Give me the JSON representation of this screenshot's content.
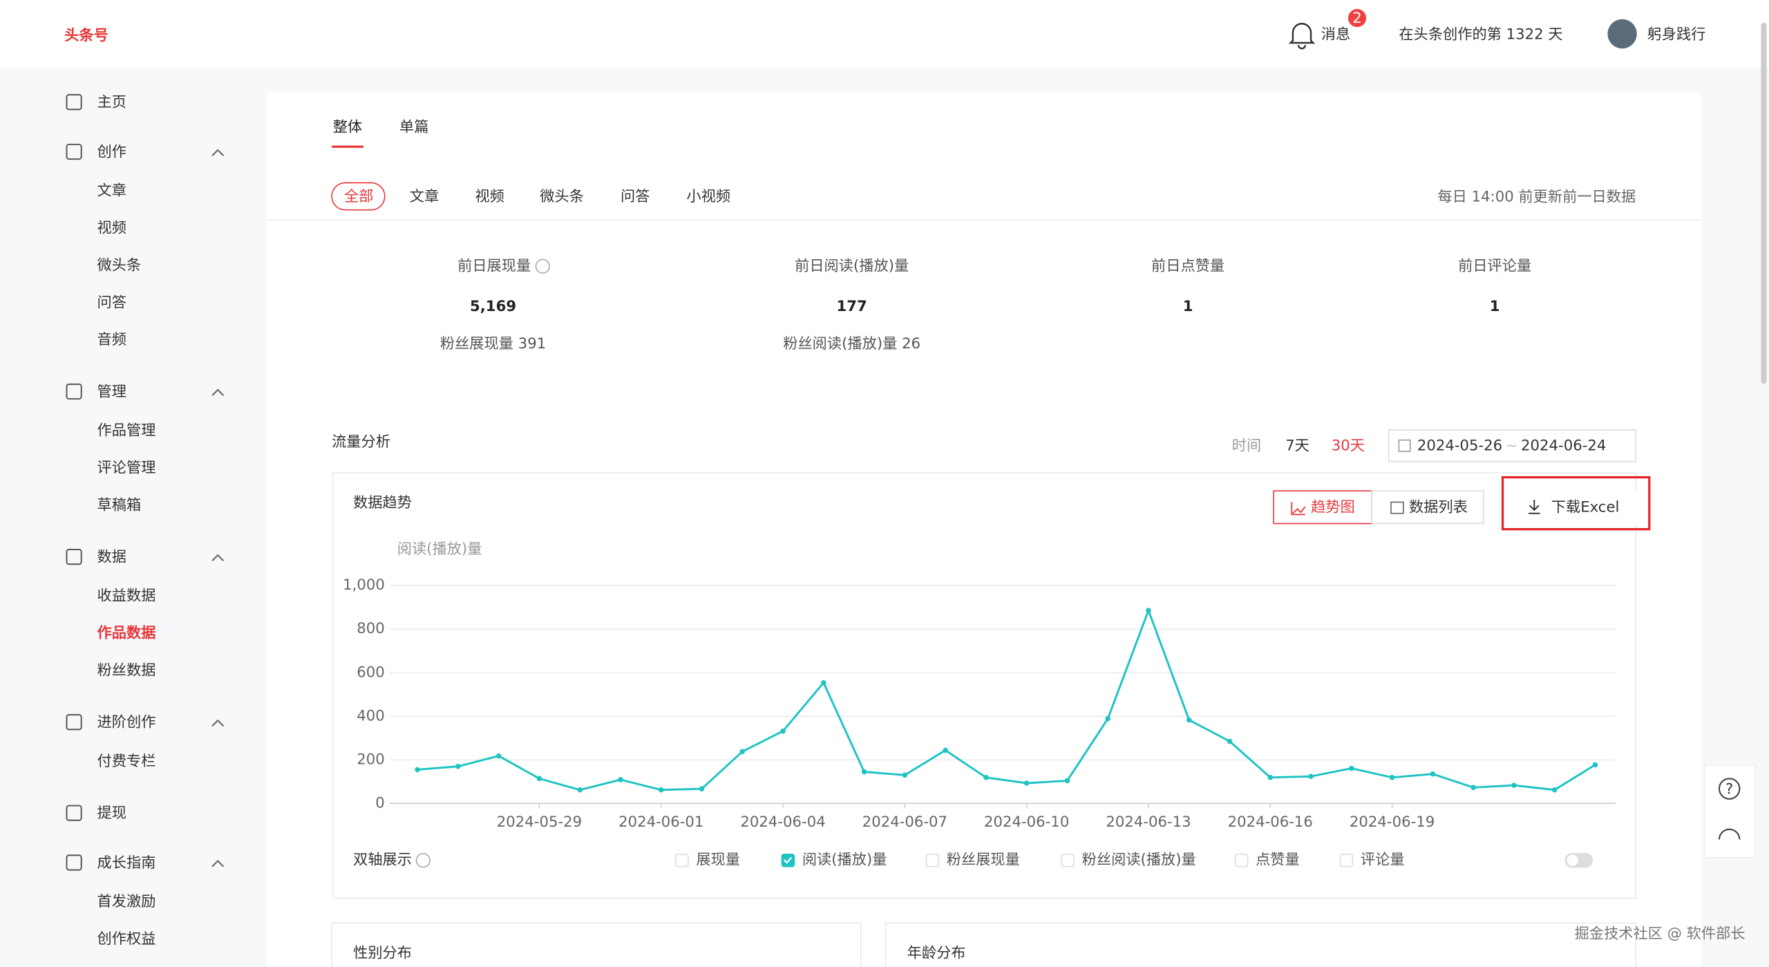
{
  "header": {
    "logo": "头条号",
    "messages": "消息",
    "badge": "2",
    "days": "在头条创作的第 1322 天",
    "user": "躬身践行"
  },
  "sidebar": [
    {
      "label": "主页",
      "items": []
    },
    {
      "label": "创作",
      "items": [
        "文章",
        "视频",
        "微头条",
        "问答",
        "音频"
      ]
    },
    {
      "label": "管理",
      "items": [
        "作品管理",
        "评论管理",
        "草稿箱"
      ]
    },
    {
      "label": "数据",
      "items": [
        "收益数据",
        "作品数据",
        "粉丝数据"
      ]
    },
    {
      "label": "进阶创作",
      "items": [
        "付费专栏"
      ]
    },
    {
      "label": "提现",
      "items": []
    },
    {
      "label": "成长指南",
      "items": [
        "首发激励",
        "创作权益"
      ]
    }
  ],
  "tabs": [
    "整体",
    "单篇"
  ],
  "filters": [
    "全部",
    "文章",
    "视频",
    "微头条",
    "问答",
    "小视频"
  ],
  "update_note": "每日 14:00 前更新前一日数据",
  "stats": [
    {
      "label": "前日展现量",
      "value": "5,169",
      "sub": "粉丝展现量 391"
    },
    {
      "label": "前日阅读(播放)量",
      "value": "177",
      "sub": "粉丝阅读(播放)量 26"
    },
    {
      "label": "前日点赞量",
      "value": "1"
    },
    {
      "label": "前日评论量",
      "value": "1"
    }
  ],
  "flow": {
    "title": "流量分析",
    "time_label": "时间",
    "ranges": [
      "7天",
      "30天"
    ],
    "date_from": "2024-05-26",
    "date_sep": "~",
    "date_to": "2024-06-24"
  },
  "panel": {
    "title": "数据趋势",
    "buttons": [
      "趋势图",
      "数据列表"
    ],
    "download": "下载Excel",
    "dual_axis": "双轴展示",
    "metrics": [
      "展现量",
      "阅读(播放)量",
      "粉丝展现量",
      "粉丝阅读(播放)量",
      "点赞量",
      "评论量"
    ]
  },
  "cards": [
    "性别分布",
    "年龄分布"
  ],
  "watermark": "掘金技术社区 @ 软件部长",
  "chart_data": {
    "type": "line",
    "y_label": "阅读(播放)量",
    "categories": [
      null,
      null,
      null,
      "2024-05-29",
      null,
      null,
      "2024-06-01",
      null,
      null,
      "2024-06-04",
      null,
      null,
      "2024-06-07",
      null,
      null,
      "2024-06-10",
      null,
      null,
      "2024-06-13",
      null,
      null,
      "2024-06-16",
      null,
      null,
      "2024-06-19",
      null,
      null,
      null,
      null,
      null
    ],
    "series": [
      {
        "name": "阅读(播放)量",
        "color": "#1fc3c3",
        "values": [
          155,
          170,
          218,
          114,
          62,
          109,
          62,
          67,
          238,
          332,
          554,
          145,
          130,
          244,
          119,
          93,
          104,
          389,
          886,
          383,
          285,
          119,
          124,
          161,
          119,
          135,
          73,
          83,
          62,
          177
        ]
      }
    ],
    "ylim": [
      0,
      1000
    ],
    "yticks": [
      0,
      200,
      400,
      600,
      800,
      {
        "value": 1000,
        "label": "1,000"
      }
    ],
    "grid": true
  }
}
